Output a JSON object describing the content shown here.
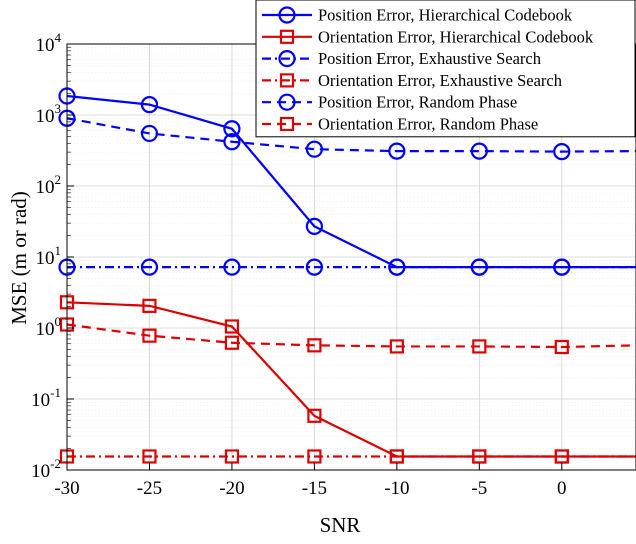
{
  "chart_data": {
    "type": "line",
    "xlabel": "SNR",
    "ylabel": "MSE (m or rad)",
    "y_scale": "log",
    "ylim": [
      0.01,
      10000
    ],
    "xlim": [
      -30,
      4.5
    ],
    "grid": true,
    "legend_position": "top-right",
    "x_ticks": [
      "-30",
      "-25",
      "-20",
      "-15",
      "-10",
      "-5",
      "0"
    ],
    "y_ticks": [
      {
        "base": "10",
        "exp": "-2"
      },
      {
        "base": "10",
        "exp": "-1"
      },
      {
        "base": "10",
        "exp": "0"
      },
      {
        "base": "10",
        "exp": "1"
      },
      {
        "base": "10",
        "exp": "2"
      },
      {
        "base": "10",
        "exp": "3"
      },
      {
        "base": "10",
        "exp": "4"
      }
    ],
    "series": [
      {
        "name": "Position Error, Hierarchical Codebook",
        "color": "#0000ff",
        "line_style": "solid",
        "marker": "circle",
        "x": [
          -30,
          -25,
          -20,
          -15,
          -10,
          -5,
          0,
          4.5
        ],
        "y": [
          1850,
          1400,
          640,
          27,
          7.2,
          7.2,
          7.2,
          7.2
        ]
      },
      {
        "name": "Orientation Error, Hierarchical Codebook",
        "color": "#dd0000",
        "line_style": "solid",
        "marker": "square",
        "x": [
          -30,
          -25,
          -20,
          -15,
          -10,
          -5,
          0,
          4.5
        ],
        "y": [
          2.3,
          2.05,
          1.05,
          0.058,
          0.0155,
          0.0155,
          0.0155,
          0.0155
        ]
      },
      {
        "name": "Position Error, Exhaustive Search",
        "color": "#0000ff",
        "line_style": "dashdot",
        "marker": "circle",
        "x": [
          -30,
          -25,
          -20,
          -15,
          -10,
          -5,
          0,
          4.5
        ],
        "y": [
          7.2,
          7.2,
          7.2,
          7.2,
          7.2,
          7.2,
          7.2,
          7.2
        ]
      },
      {
        "name": "Orientation Error, Exhaustive Search",
        "color": "#dd0000",
        "line_style": "dashdot",
        "marker": "square",
        "x": [
          -30,
          -25,
          -20,
          -15,
          -10,
          -5,
          0,
          4.5
        ],
        "y": [
          0.0155,
          0.0155,
          0.0155,
          0.0155,
          0.0155,
          0.0155,
          0.0155,
          0.0155
        ]
      },
      {
        "name": "Position Error, Random Phase",
        "color": "#0000ff",
        "line_style": "dashed",
        "marker": "circle",
        "x": [
          -30,
          -25,
          -20,
          -15,
          -10,
          -5,
          0,
          4.5
        ],
        "y": [
          900,
          550,
          420,
          330,
          310,
          310,
          305,
          310
        ]
      },
      {
        "name": "Orientation Error, Random Phase",
        "color": "#dd0000",
        "line_style": "dashed",
        "marker": "square",
        "x": [
          -30,
          -25,
          -20,
          -15,
          -10,
          -5,
          0,
          4.5
        ],
        "y": [
          1.12,
          0.78,
          0.62,
          0.57,
          0.55,
          0.55,
          0.54,
          0.57
        ]
      }
    ]
  }
}
